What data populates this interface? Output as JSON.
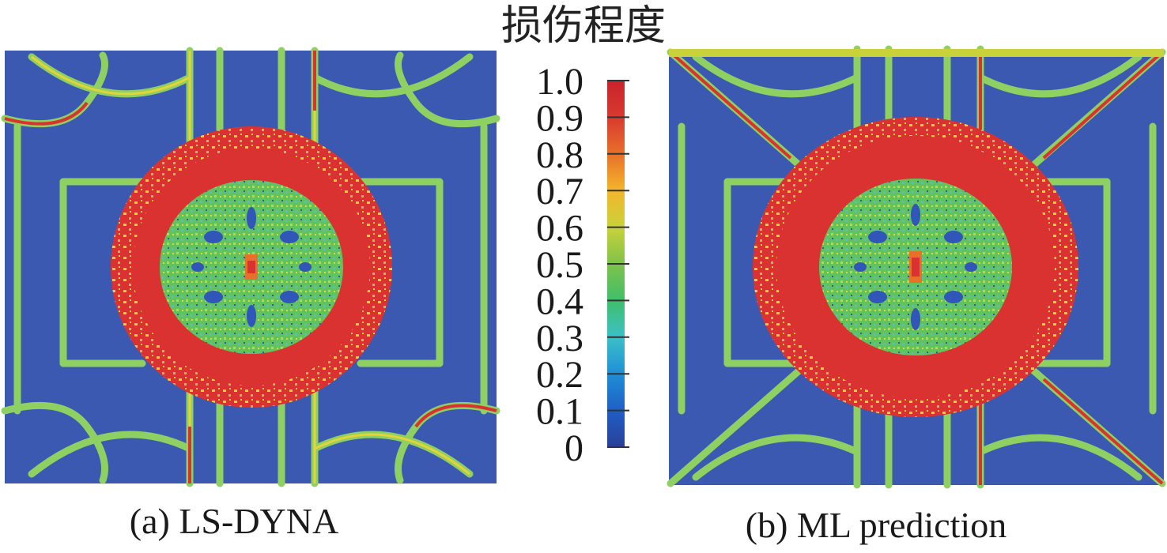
{
  "colorbar": {
    "title": "损伤程度",
    "ticks": [
      "1.0",
      "0.9",
      "0.8",
      "0.7",
      "0.6",
      "0.5",
      "0.4",
      "0.3",
      "0.2",
      "0.1",
      "0"
    ],
    "colors": [
      "#2a3f9a",
      "#1f5fc4",
      "#1f8fd6",
      "#3cc0c8",
      "#3fbf6a",
      "#7fc24a",
      "#c9d23a",
      "#f3b62b",
      "#e8702a",
      "#d83a2f",
      "#c8232c"
    ]
  },
  "panels": {
    "a": {
      "caption": "(a) LS-DYNA"
    },
    "b": {
      "caption": "(b) ML prediction"
    }
  },
  "colors": {
    "background": "#3b59b0",
    "edge_green": "#8fd062",
    "edge_yellow": "#e6d33a",
    "damage_red": "#d93230",
    "core_green": "#62c25c",
    "core_teal": "#58c0b8",
    "core_blue": "#2f56b8"
  },
  "chart_data": {
    "type": "heatmap",
    "title": "损伤程度",
    "colorbar_range": [
      0,
      1.0
    ],
    "colorbar_ticks": [
      1.0,
      0.9,
      0.8,
      0.7,
      0.6,
      0.5,
      0.4,
      0.3,
      0.2,
      0.1,
      0
    ],
    "panels": [
      "(a) LS-DYNA",
      "(b) ML prediction"
    ]
  }
}
